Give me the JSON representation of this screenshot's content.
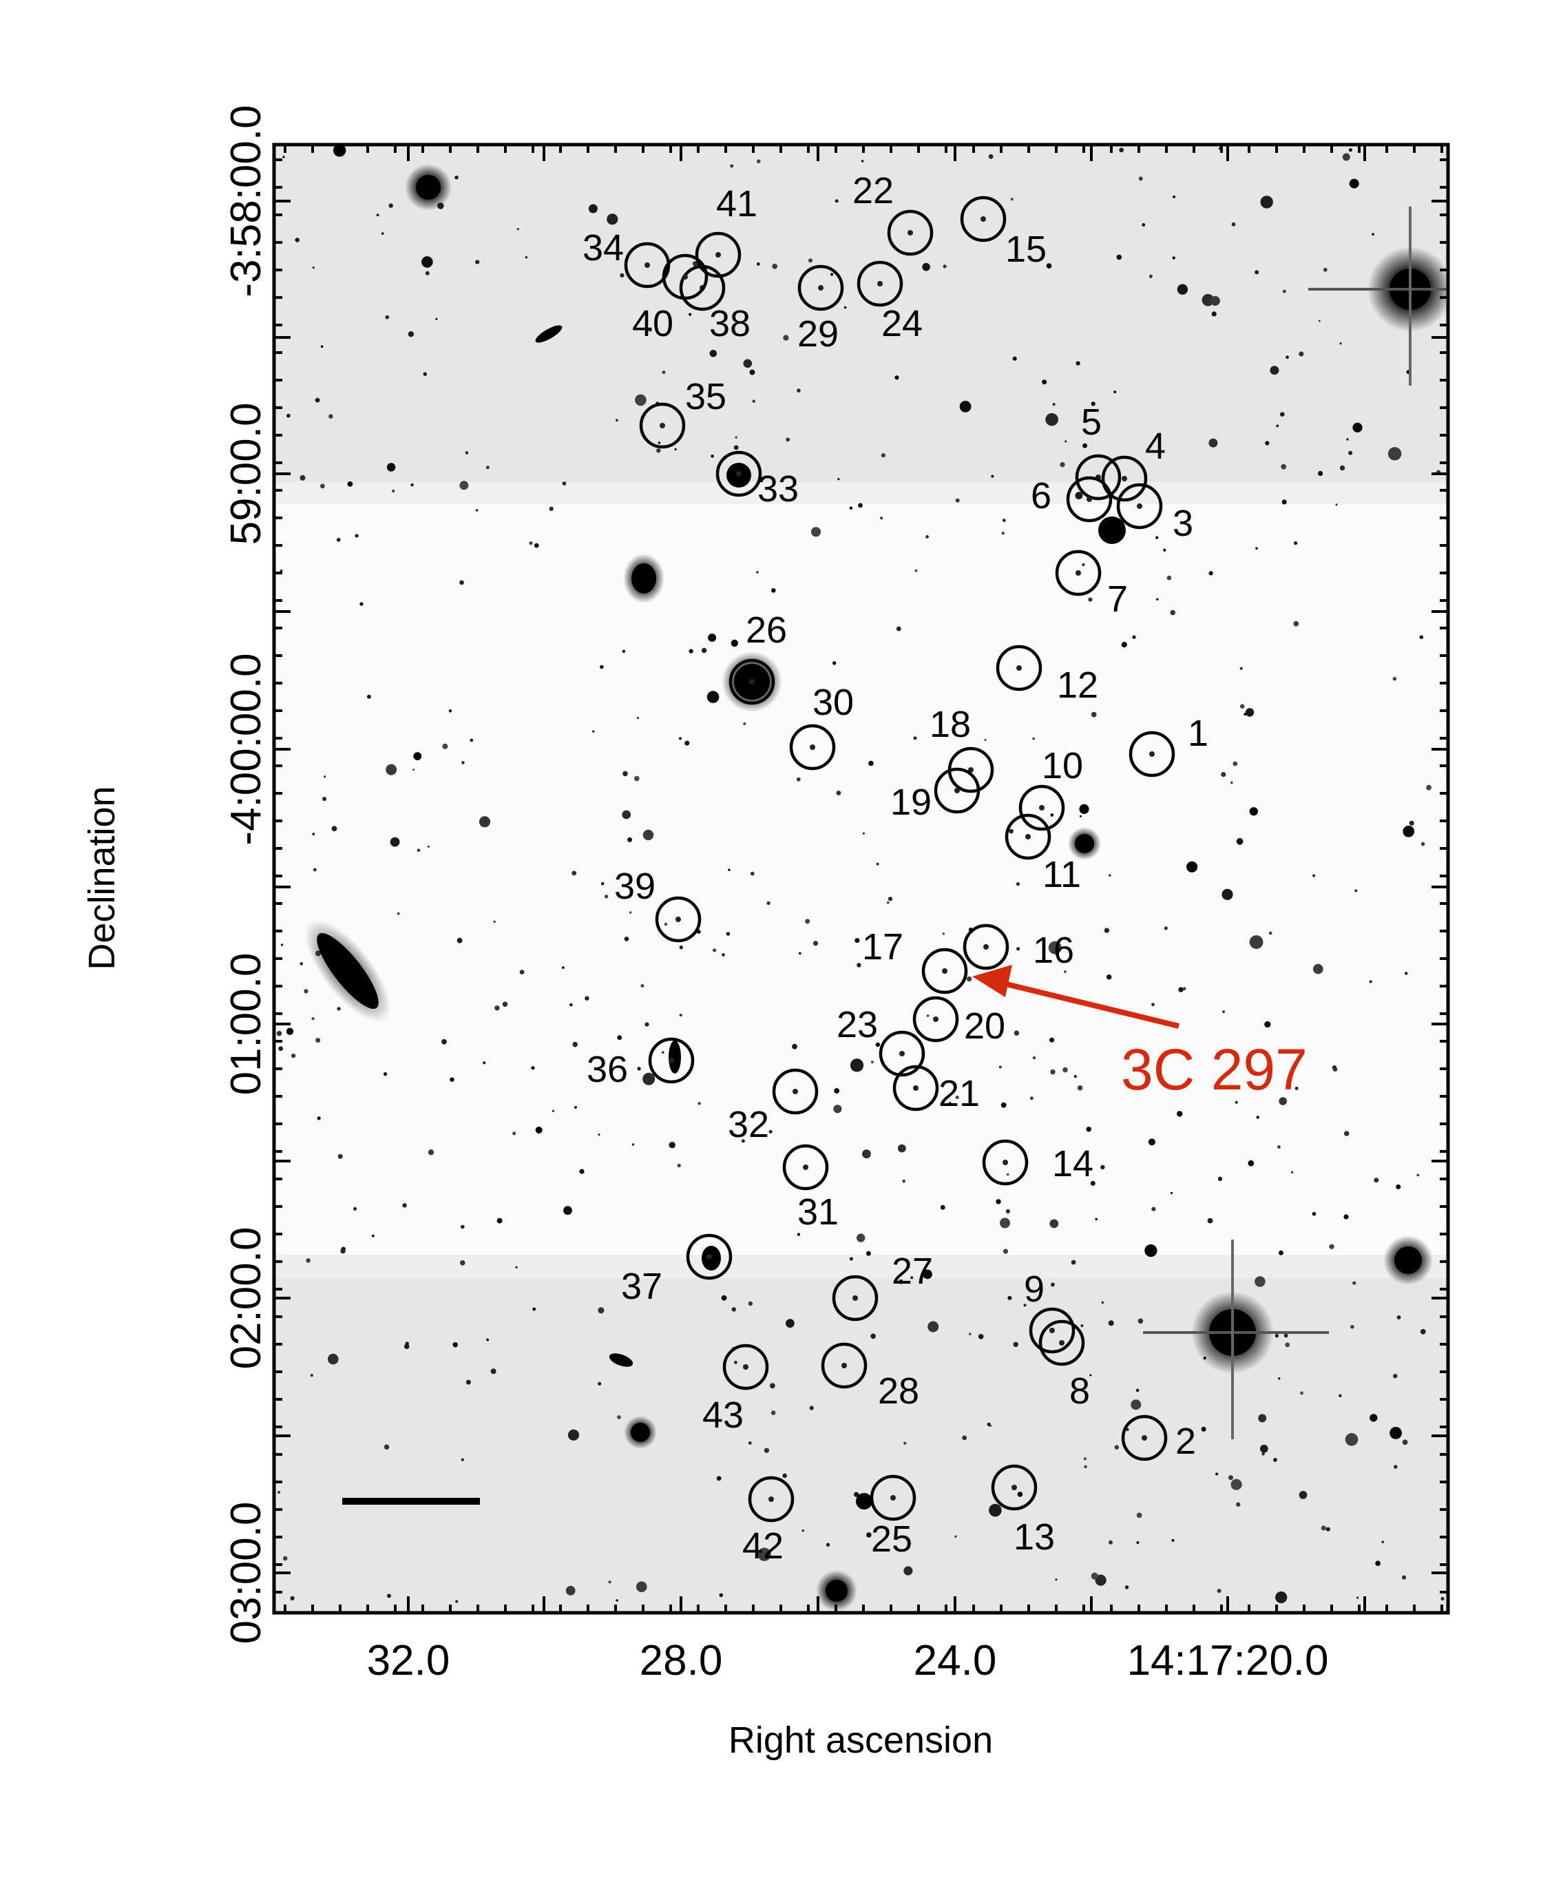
{
  "axes": {
    "x_title": "Right ascension",
    "y_title": "Declination",
    "x_ticks": [
      "32.0",
      "28.0",
      "24.0",
      "14:17:20.0"
    ],
    "y_ticks": [
      "-3:58:00.0",
      "59:00.0",
      "-4:00:00.0",
      "01:00.0",
      "02:00.0",
      "03:00.0"
    ]
  },
  "target": {
    "label": "3C 297",
    "color": "#d62a10"
  },
  "sources": [
    {
      "id": "1"
    },
    {
      "id": "2"
    },
    {
      "id": "3"
    },
    {
      "id": "4"
    },
    {
      "id": "5"
    },
    {
      "id": "6"
    },
    {
      "id": "7"
    },
    {
      "id": "8"
    },
    {
      "id": "9"
    },
    {
      "id": "10"
    },
    {
      "id": "11"
    },
    {
      "id": "12"
    },
    {
      "id": "13"
    },
    {
      "id": "14"
    },
    {
      "id": "15"
    },
    {
      "id": "16"
    },
    {
      "id": "17"
    },
    {
      "id": "18"
    },
    {
      "id": "19"
    },
    {
      "id": "20"
    },
    {
      "id": "21"
    },
    {
      "id": "22"
    },
    {
      "id": "23"
    },
    {
      "id": "24"
    },
    {
      "id": "25"
    },
    {
      "id": "26"
    },
    {
      "id": "27"
    },
    {
      "id": "28"
    },
    {
      "id": "29"
    },
    {
      "id": "30"
    },
    {
      "id": "31"
    },
    {
      "id": "32"
    },
    {
      "id": "33"
    },
    {
      "id": "34"
    },
    {
      "id": "35"
    },
    {
      "id": "36"
    },
    {
      "id": "37"
    },
    {
      "id": "38"
    },
    {
      "id": "39"
    },
    {
      "id": "40"
    },
    {
      "id": "41"
    },
    {
      "id": "42"
    },
    {
      "id": "43"
    }
  ],
  "colors": {
    "sky_band_gray": "#e6e6e6",
    "sky_center": "#fbfbfb",
    "frame": "#000000"
  }
}
